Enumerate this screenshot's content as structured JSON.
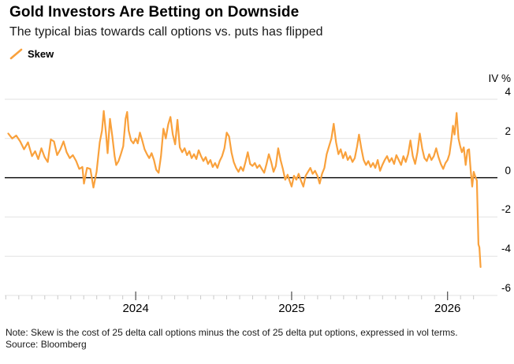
{
  "header": {
    "title": "Gold Investors Are Betting on Downside",
    "subtitle": "The typical bias towards call options vs. puts has flipped"
  },
  "legend": {
    "label": "Skew"
  },
  "axis_unit": "IV %",
  "footer": {
    "note": "Note: Skew is the cost of 25 delta call options minus the cost of 25 delta put options, expressed in vol terms.",
    "source": "Source: Bloomberg"
  },
  "colors": {
    "line": "#F9A13C",
    "grid": "#E2E2E2",
    "zero_line": "#000000",
    "tick_minor": "#C9C9C9",
    "tick_major": "#4D4D4D",
    "text": "#1A1A1A"
  },
  "chart_data": {
    "type": "line",
    "title": "Gold Investors Are Betting on Downside",
    "xlabel": "",
    "ylabel": "IV %",
    "legend_position": "top-left",
    "grid": "horizontal",
    "x_range": [
      2023.16,
      2026.32
    ],
    "y_range": [
      -6,
      4.64
    ],
    "y_gridlines": [
      4,
      2,
      0,
      -2,
      -4,
      -6
    ],
    "y_tick_labels": [
      "4",
      "2",
      "0",
      "-2",
      "-4",
      "-6"
    ],
    "zero_line_value": 0,
    "x_major_ticks": [
      {
        "x": 2024,
        "label": "2024"
      },
      {
        "x": 2025,
        "label": "2025"
      },
      {
        "x": 2026,
        "label": "2026"
      }
    ],
    "x_minor_ticks": {
      "from": 2023.1667,
      "step": 0.0833333,
      "to": 2026.17
    },
    "series": [
      {
        "name": "Skew",
        "color": "#F9A13C",
        "points": [
          [
            2023.183,
            2.25
          ],
          [
            2023.208,
            2.0
          ],
          [
            2023.234,
            2.15
          ],
          [
            2023.259,
            1.85
          ],
          [
            2023.284,
            1.45
          ],
          [
            2023.309,
            1.8
          ],
          [
            2023.335,
            1.1
          ],
          [
            2023.355,
            1.35
          ],
          [
            2023.375,
            0.95
          ],
          [
            2023.395,
            1.5
          ],
          [
            2023.416,
            1.05
          ],
          [
            2023.436,
            0.8
          ],
          [
            2023.456,
            1.95
          ],
          [
            2023.476,
            1.85
          ],
          [
            2023.496,
            1.15
          ],
          [
            2023.517,
            1.45
          ],
          [
            2023.537,
            1.85
          ],
          [
            2023.557,
            1.3
          ],
          [
            2023.577,
            1.0
          ],
          [
            2023.597,
            1.15
          ],
          [
            2023.618,
            0.85
          ],
          [
            2023.638,
            0.45
          ],
          [
            2023.658,
            0.55
          ],
          [
            2023.668,
            -0.3
          ],
          [
            2023.688,
            0.5
          ],
          [
            2023.709,
            0.45
          ],
          [
            2023.729,
            -0.5
          ],
          [
            2023.749,
            0.3
          ],
          [
            2023.769,
            1.8
          ],
          [
            2023.784,
            2.4
          ],
          [
            2023.795,
            3.4
          ],
          [
            2023.81,
            2.2
          ],
          [
            2023.82,
            1.25
          ],
          [
            2023.835,
            3.0
          ],
          [
            2023.85,
            2.1
          ],
          [
            2023.865,
            1.1
          ],
          [
            2023.875,
            0.65
          ],
          [
            2023.89,
            0.85
          ],
          [
            2023.905,
            1.2
          ],
          [
            2023.92,
            1.6
          ],
          [
            2023.935,
            3.0
          ],
          [
            2023.945,
            3.35
          ],
          [
            2023.955,
            2.4
          ],
          [
            2023.97,
            1.9
          ],
          [
            2023.985,
            1.75
          ],
          [
            2024.0,
            2.0
          ],
          [
            2024.013,
            1.75
          ],
          [
            2024.027,
            2.3
          ],
          [
            2024.042,
            1.9
          ],
          [
            2024.057,
            1.45
          ],
          [
            2024.072,
            1.2
          ],
          [
            2024.087,
            1.0
          ],
          [
            2024.102,
            1.25
          ],
          [
            2024.117,
            0.9
          ],
          [
            2024.132,
            0.4
          ],
          [
            2024.147,
            0.25
          ],
          [
            2024.162,
            1.1
          ],
          [
            2024.178,
            2.5
          ],
          [
            2024.193,
            2.0
          ],
          [
            2024.208,
            2.7
          ],
          [
            2024.223,
            3.1
          ],
          [
            2024.238,
            2.2
          ],
          [
            2024.253,
            1.7
          ],
          [
            2024.268,
            2.95
          ],
          [
            2024.283,
            1.55
          ],
          [
            2024.298,
            1.3
          ],
          [
            2024.314,
            1.5
          ],
          [
            2024.329,
            1.15
          ],
          [
            2024.344,
            1.35
          ],
          [
            2024.359,
            1.0
          ],
          [
            2024.374,
            1.2
          ],
          [
            2024.389,
            0.95
          ],
          [
            2024.404,
            1.4
          ],
          [
            2024.419,
            1.1
          ],
          [
            2024.434,
            0.85
          ],
          [
            2024.449,
            1.05
          ],
          [
            2024.464,
            0.7
          ],
          [
            2024.479,
            0.9
          ],
          [
            2024.494,
            0.55
          ],
          [
            2024.509,
            0.75
          ],
          [
            2024.524,
            0.5
          ],
          [
            2024.539,
            0.85
          ],
          [
            2024.554,
            1.1
          ],
          [
            2024.569,
            1.5
          ],
          [
            2024.584,
            2.3
          ],
          [
            2024.599,
            2.1
          ],
          [
            2024.614,
            1.3
          ],
          [
            2024.629,
            0.8
          ],
          [
            2024.644,
            0.5
          ],
          [
            2024.659,
            0.3
          ],
          [
            2024.674,
            0.55
          ],
          [
            2024.689,
            0.35
          ],
          [
            2024.704,
            0.8
          ],
          [
            2024.719,
            1.3
          ],
          [
            2024.734,
            0.7
          ],
          [
            2024.749,
            0.6
          ],
          [
            2024.764,
            0.75
          ],
          [
            2024.779,
            0.5
          ],
          [
            2024.794,
            0.65
          ],
          [
            2024.809,
            0.45
          ],
          [
            2024.824,
            0.25
          ],
          [
            2024.839,
            0.7
          ],
          [
            2024.854,
            1.2
          ],
          [
            2024.869,
            0.8
          ],
          [
            2024.884,
            0.3
          ],
          [
            2024.899,
            0.6
          ],
          [
            2024.914,
            1.5
          ],
          [
            2024.929,
            0.9
          ],
          [
            2024.944,
            0.45
          ],
          [
            2024.959,
            -0.1
          ],
          [
            2024.974,
            0.15
          ],
          [
            2024.989,
            -0.2
          ],
          [
            2025.0,
            -0.45
          ],
          [
            2025.015,
            0.1
          ],
          [
            2025.03,
            -0.1
          ],
          [
            2025.045,
            0.2
          ],
          [
            2025.06,
            -0.15
          ],
          [
            2025.075,
            -0.45
          ],
          [
            2025.09,
            0.1
          ],
          [
            2025.105,
            0.3
          ],
          [
            2025.12,
            0.5
          ],
          [
            2025.135,
            0.2
          ],
          [
            2025.15,
            0.35
          ],
          [
            2025.165,
            0.1
          ],
          [
            2025.18,
            -0.3
          ],
          [
            2025.195,
            0.2
          ],
          [
            2025.21,
            0.5
          ],
          [
            2025.225,
            1.2
          ],
          [
            2025.24,
            1.6
          ],
          [
            2025.255,
            2.0
          ],
          [
            2025.27,
            2.75
          ],
          [
            2025.285,
            1.8
          ],
          [
            2025.3,
            1.2
          ],
          [
            2025.315,
            1.45
          ],
          [
            2025.33,
            1.0
          ],
          [
            2025.345,
            1.3
          ],
          [
            2025.36,
            0.9
          ],
          [
            2025.375,
            1.1
          ],
          [
            2025.39,
            0.8
          ],
          [
            2025.405,
            1.0
          ],
          [
            2025.42,
            1.6
          ],
          [
            2025.432,
            2.2
          ],
          [
            2025.447,
            1.5
          ],
          [
            2025.462,
            0.9
          ],
          [
            2025.477,
            0.65
          ],
          [
            2025.492,
            0.85
          ],
          [
            2025.507,
            0.55
          ],
          [
            2025.522,
            0.75
          ],
          [
            2025.537,
            0.5
          ],
          [
            2025.552,
            0.9
          ],
          [
            2025.567,
            0.35
          ],
          [
            2025.582,
            0.65
          ],
          [
            2025.597,
            0.9
          ],
          [
            2025.612,
            1.1
          ],
          [
            2025.627,
            0.8
          ],
          [
            2025.642,
            1.0
          ],
          [
            2025.657,
            0.7
          ],
          [
            2025.672,
            1.15
          ],
          [
            2025.687,
            0.9
          ],
          [
            2025.702,
            0.65
          ],
          [
            2025.717,
            1.1
          ],
          [
            2025.732,
            0.8
          ],
          [
            2025.747,
            1.2
          ],
          [
            2025.762,
            1.9
          ],
          [
            2025.777,
            1.1
          ],
          [
            2025.792,
            0.7
          ],
          [
            2025.807,
            1.3
          ],
          [
            2025.822,
            2.25
          ],
          [
            2025.837,
            1.5
          ],
          [
            2025.852,
            1.0
          ],
          [
            2025.867,
            0.85
          ],
          [
            2025.882,
            1.2
          ],
          [
            2025.897,
            0.9
          ],
          [
            2025.912,
            1.1
          ],
          [
            2025.927,
            1.5
          ],
          [
            2025.942,
            1.05
          ],
          [
            2025.957,
            0.7
          ],
          [
            2025.972,
            0.45
          ],
          [
            2025.987,
            0.75
          ],
          [
            2026.0,
            0.9
          ],
          [
            2026.012,
            1.2
          ],
          [
            2026.024,
            1.9
          ],
          [
            2026.035,
            2.65
          ],
          [
            2026.045,
            2.2
          ],
          [
            2026.058,
            3.3
          ],
          [
            2026.07,
            2.0
          ],
          [
            2026.08,
            1.65
          ],
          [
            2026.092,
            1.3
          ],
          [
            2026.104,
            1.55
          ],
          [
            2026.116,
            0.65
          ],
          [
            2026.128,
            1.4
          ],
          [
            2026.138,
            1.45
          ],
          [
            2026.148,
            0.4
          ],
          [
            2026.158,
            -0.45
          ],
          [
            2026.168,
            0.3
          ],
          [
            2026.178,
            0.05
          ],
          [
            2026.188,
            -0.15
          ],
          [
            2026.198,
            -3.4
          ],
          [
            2026.204,
            -3.55
          ],
          [
            2026.212,
            -4.55
          ]
        ]
      }
    ]
  }
}
